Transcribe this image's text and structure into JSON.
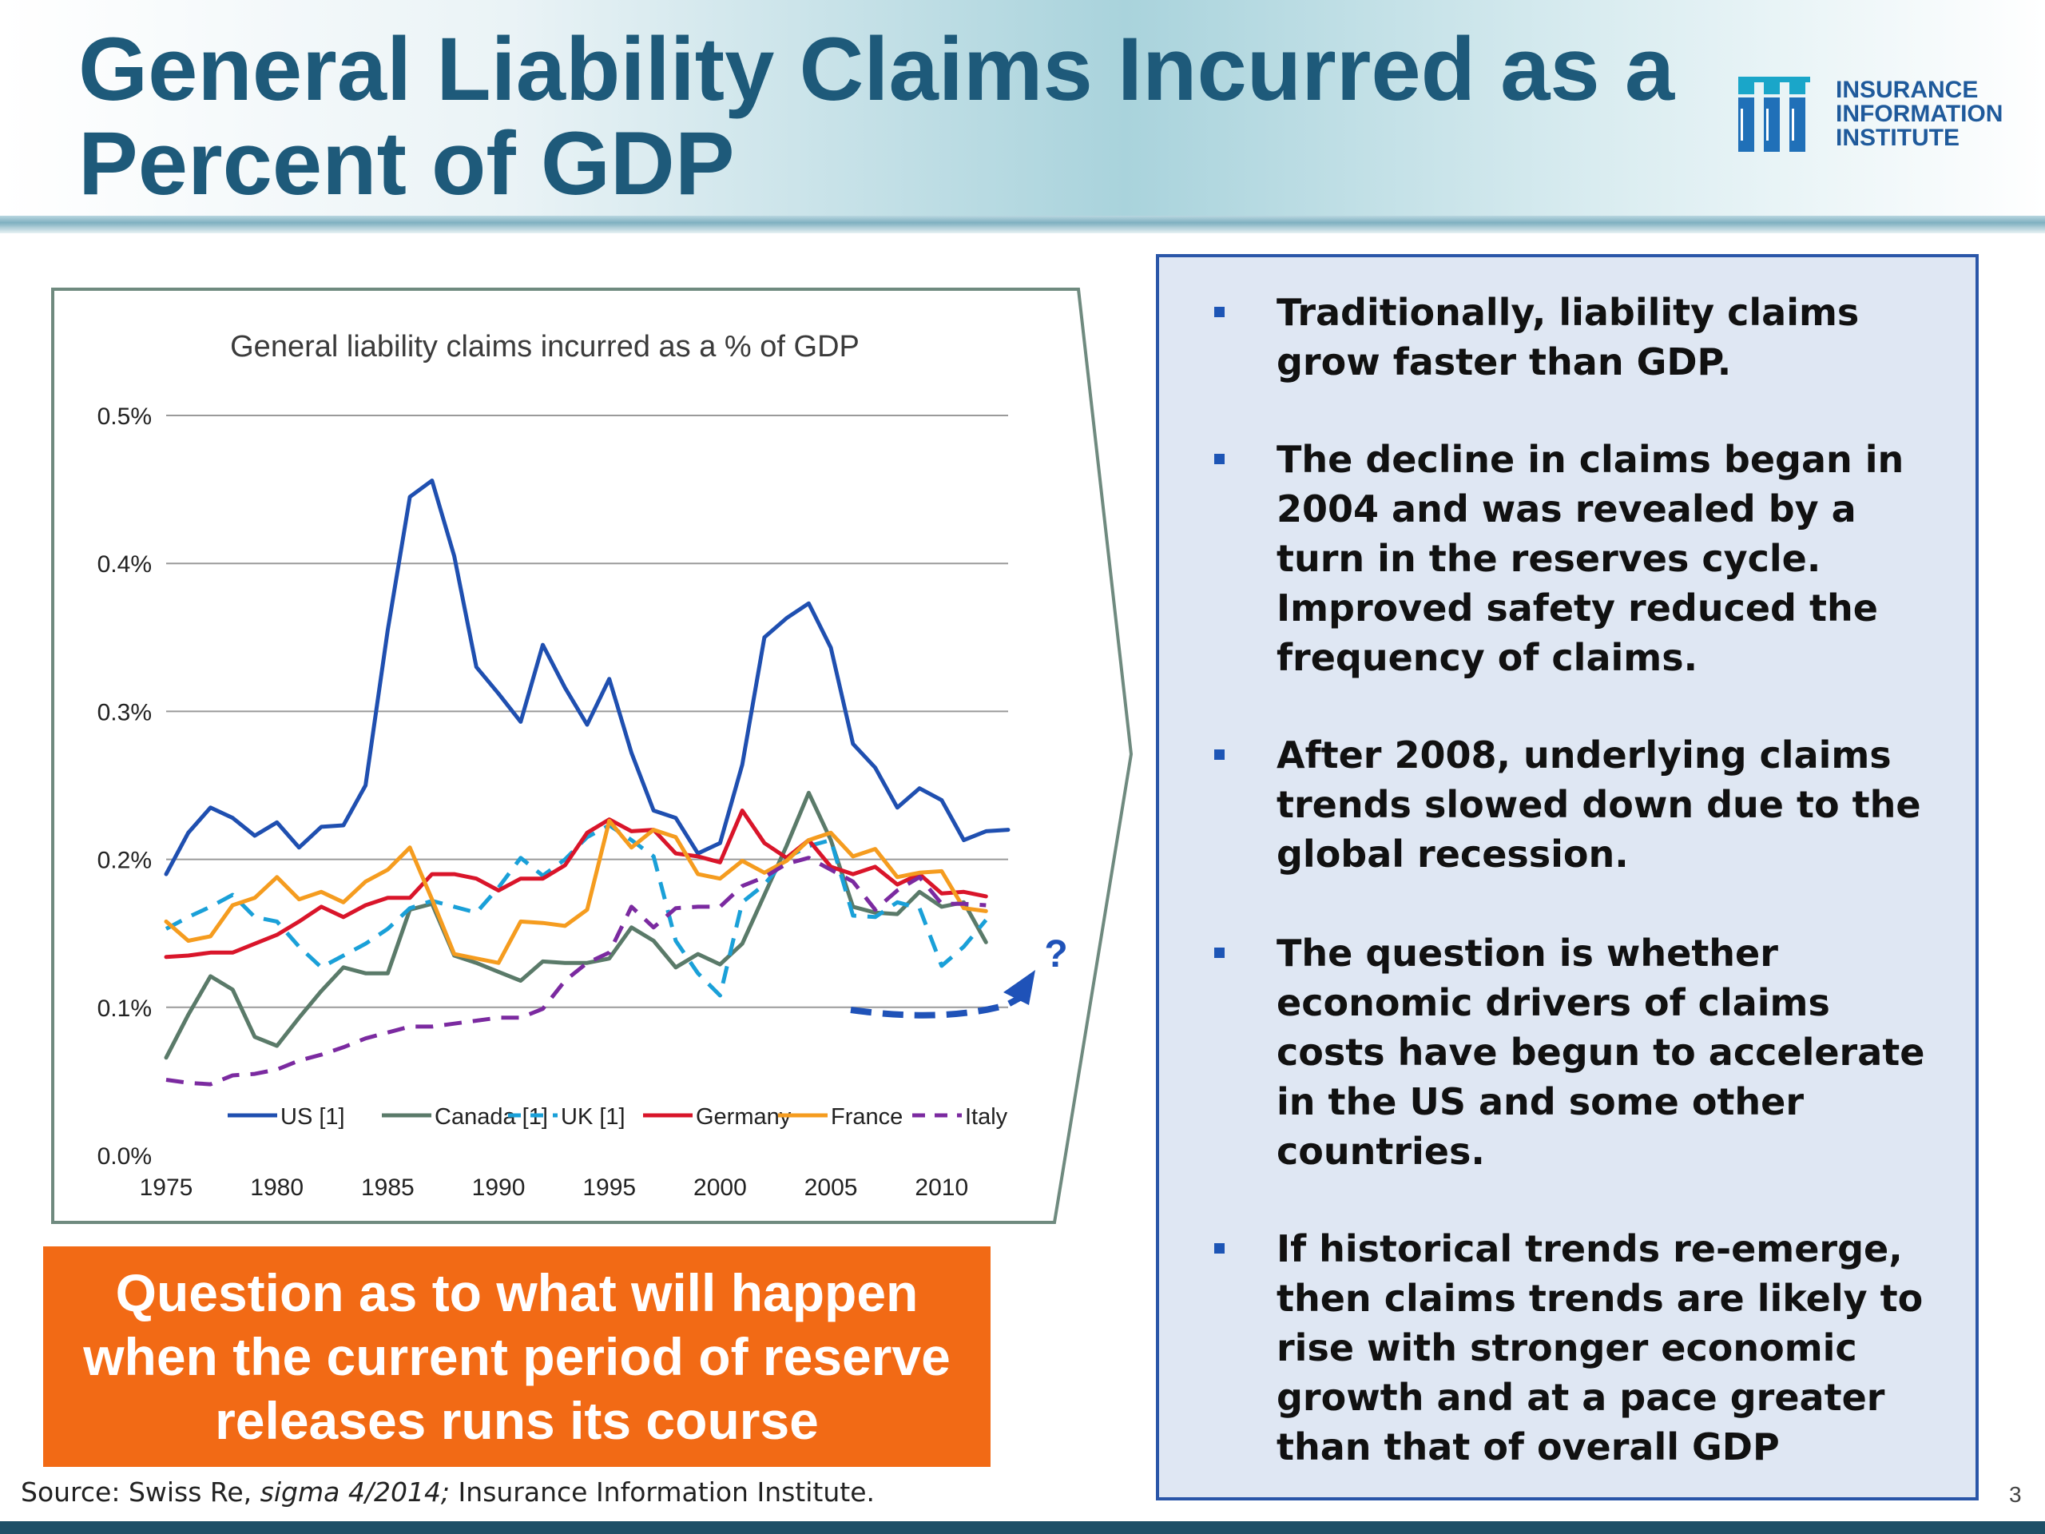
{
  "title": "General Liability Claims Incurred as a Percent of GDP",
  "logo": {
    "lines": [
      "INSURANCE",
      "INFORMATION",
      "INSTITUTE"
    ],
    "icon": "iii-logo-icon"
  },
  "callout": {
    "text": "Question as to what will happen when the current period of reserve releases runs its course"
  },
  "source": {
    "prefix": "Source: Swiss Re, ",
    "italic": "sigma 4/2014;",
    "suffix": " Insurance Information Institute."
  },
  "page_number": "3",
  "bullets": [
    "Traditionally, liability claims grow faster than GDP.",
    "The decline in claims began in 2004 and was revealed by a turn in the reserves cycle. Improved safety reduced the frequency of claims.",
    "After 2008, underlying claims trends slowed down due to the global recession.",
    "The question is whether economic drivers of claims costs have begun to accelerate in the US and some other countries.",
    "If historical trends re-emerge, then claims trends are likely to rise with stronger economic growth and at a pace greater than that of overall GDP"
  ],
  "annotation": {
    "question_mark": "?"
  },
  "colors": {
    "title": "#1e5a7a",
    "callout_bg": "#f26a15",
    "bullet_box_bg": "#dfe7f3",
    "bullet_box_border": "#2a56a8",
    "bullet_marker": "#1d55b5",
    "annotation_arrow": "#1f52b8"
  },
  "chart_data": {
    "type": "line",
    "title": "General liability claims incurred as a % of GDP",
    "xlabel": "",
    "ylabel": "",
    "xlim": [
      1975,
      2013
    ],
    "ylim": [
      0,
      0.5
    ],
    "y_ticks": [
      0.0,
      0.1,
      0.2,
      0.3,
      0.4,
      0.5
    ],
    "y_tick_labels": [
      "0.0%",
      "0.1%",
      "0.2%",
      "0.3%",
      "0.4%",
      "0.5%"
    ],
    "x_ticks": [
      1975,
      1980,
      1985,
      1990,
      1995,
      2000,
      2005,
      2010
    ],
    "x_tick_labels": [
      "1975",
      "1980",
      "1985",
      "1990",
      "1995",
      "2000",
      "2005",
      "2010"
    ],
    "grid": "horizontal",
    "legend_position": "bottom",
    "x": [
      1975,
      1976,
      1977,
      1978,
      1979,
      1980,
      1981,
      1982,
      1983,
      1984,
      1985,
      1986,
      1987,
      1988,
      1989,
      1990,
      1991,
      1992,
      1993,
      1994,
      1995,
      1996,
      1997,
      1998,
      1999,
      2000,
      2001,
      2002,
      2003,
      2004,
      2005,
      2006,
      2007,
      2008,
      2009,
      2010,
      2011,
      2012,
      2013
    ],
    "series": [
      {
        "name": "US [1]",
        "color": "#1f4fb0",
        "dash": "solid",
        "values": [
          0.19,
          0.218,
          0.235,
          0.228,
          0.216,
          0.225,
          0.208,
          0.222,
          0.223,
          0.25,
          0.355,
          0.445,
          0.456,
          0.405,
          0.33,
          0.312,
          0.293,
          0.345,
          0.316,
          0.291,
          0.322,
          0.272,
          0.233,
          0.228,
          0.204,
          0.211,
          0.264,
          0.35,
          0.363,
          0.373,
          0.343,
          0.278,
          0.262,
          0.235,
          0.248,
          0.24,
          0.213,
          0.219,
          0.22
        ]
      },
      {
        "name": "Canada [1]",
        "color": "#5a7a69",
        "dash": "solid",
        "values": [
          0.066,
          0.095,
          0.121,
          0.112,
          0.08,
          0.074,
          0.093,
          0.111,
          0.127,
          0.123,
          0.123,
          0.166,
          0.17,
          0.135,
          0.13,
          0.124,
          0.118,
          0.131,
          0.13,
          0.13,
          0.133,
          0.154,
          0.145,
          0.127,
          0.136,
          0.129,
          0.143,
          0.176,
          0.209,
          0.245,
          0.213,
          0.168,
          0.164,
          0.163,
          0.178,
          0.168,
          0.171,
          0.144,
          null
        ]
      },
      {
        "name": "UK [1]",
        "color": "#1aa0d8",
        "dash": "dash",
        "values": [
          0.153,
          0.161,
          0.168,
          0.176,
          0.161,
          0.158,
          0.141,
          0.127,
          0.135,
          0.143,
          0.153,
          0.167,
          0.172,
          0.168,
          0.164,
          0.181,
          0.201,
          0.189,
          0.2,
          0.215,
          0.223,
          0.213,
          0.202,
          0.145,
          0.123,
          0.108,
          0.171,
          0.183,
          0.201,
          0.209,
          0.213,
          0.162,
          0.161,
          0.171,
          0.167,
          0.128,
          0.141,
          0.159,
          null
        ]
      },
      {
        "name": "Germany",
        "color": "#d9152a",
        "dash": "solid",
        "values": [
          0.134,
          0.135,
          0.137,
          0.137,
          0.143,
          0.149,
          0.158,
          0.168,
          0.161,
          0.169,
          0.174,
          0.174,
          0.19,
          0.19,
          0.187,
          0.179,
          0.187,
          0.187,
          0.196,
          0.218,
          0.227,
          0.219,
          0.22,
          0.204,
          0.202,
          0.198,
          0.233,
          0.211,
          0.201,
          0.213,
          0.195,
          0.19,
          0.195,
          0.183,
          0.19,
          0.177,
          0.178,
          0.175,
          null
        ]
      },
      {
        "name": "France",
        "color": "#f59c1f",
        "dash": "solid",
        "values": [
          0.158,
          0.145,
          0.148,
          0.169,
          0.174,
          0.188,
          0.173,
          0.178,
          0.171,
          0.185,
          0.193,
          0.208,
          0.173,
          0.136,
          0.133,
          0.13,
          0.158,
          0.157,
          0.155,
          0.166,
          0.226,
          0.208,
          0.22,
          0.215,
          0.19,
          0.187,
          0.199,
          0.191,
          0.199,
          0.213,
          0.218,
          0.202,
          0.207,
          0.188,
          0.191,
          0.192,
          0.167,
          0.165,
          null
        ]
      },
      {
        "name": "Italy",
        "color": "#7b2aa0",
        "dash": "dash",
        "values": [
          0.051,
          0.049,
          0.048,
          0.054,
          0.055,
          0.058,
          0.064,
          0.068,
          0.073,
          0.079,
          0.083,
          0.087,
          0.087,
          0.089,
          0.091,
          0.093,
          0.093,
          0.099,
          0.118,
          0.13,
          0.137,
          0.168,
          0.154,
          0.167,
          0.168,
          0.168,
          0.182,
          0.188,
          0.197,
          0.201,
          0.193,
          0.185,
          0.166,
          0.179,
          0.188,
          0.17,
          0.17,
          0.169,
          null
        ]
      }
    ]
  }
}
